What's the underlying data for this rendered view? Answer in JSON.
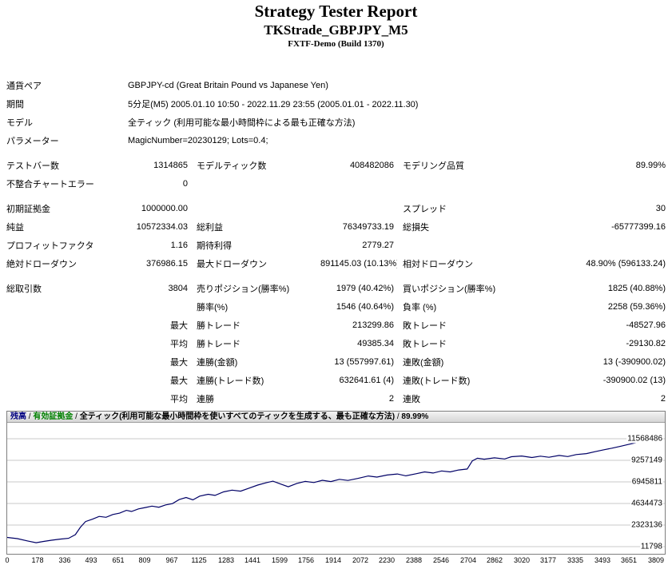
{
  "header": {
    "title": "Strategy Tester Report",
    "subtitle": "TKStrade_GBPJPY_M5",
    "build": "FXTF-Demo (Build 1370)"
  },
  "report": {
    "rows": [
      {
        "cells": [
          {
            "t": "通貨ペア"
          },
          {
            "t": "GBPJPY-cd (Great Britain Pound vs Japanese Yen)",
            "span": 5
          }
        ]
      },
      {
        "cells": [
          {
            "t": "期間"
          },
          {
            "t": "5分足(M5) 2005.01.10 10:50 - 2022.11.29 23:55 (2005.01.01 - 2022.11.30)",
            "span": 5
          }
        ]
      },
      {
        "cells": [
          {
            "t": "モデル"
          },
          {
            "t": "全ティック (利用可能な最小時間枠による最も正確な方法)",
            "span": 5
          }
        ]
      },
      {
        "cells": [
          {
            "t": "パラメーター"
          },
          {
            "t": "MagicNumber=20230129; Lots=0.4;",
            "span": 5
          }
        ]
      },
      {
        "spacer": true
      },
      {
        "cells": [
          {
            "t": "テストバー数"
          },
          {
            "t": "1314865",
            "align": "right"
          },
          {
            "t": "モデルティック数"
          },
          {
            "t": "408482086",
            "align": "right"
          },
          {
            "t": "モデリング品質"
          },
          {
            "t": "89.99%",
            "align": "right"
          }
        ]
      },
      {
        "cells": [
          {
            "t": "不整合チャートエラー"
          },
          {
            "t": "0",
            "align": "right"
          },
          {
            "t": ""
          },
          {
            "t": ""
          },
          {
            "t": ""
          },
          {
            "t": ""
          }
        ]
      },
      {
        "spacer": true
      },
      {
        "cells": [
          {
            "t": "初期証拠金"
          },
          {
            "t": "1000000.00",
            "align": "right"
          },
          {
            "t": ""
          },
          {
            "t": ""
          },
          {
            "t": "スプレッド"
          },
          {
            "t": "30",
            "align": "right"
          }
        ]
      },
      {
        "cells": [
          {
            "t": "純益"
          },
          {
            "t": "10572334.03",
            "align": "right"
          },
          {
            "t": "総利益"
          },
          {
            "t": "76349733.19",
            "align": "right"
          },
          {
            "t": "総損失"
          },
          {
            "t": "-65777399.16",
            "align": "right"
          }
        ]
      },
      {
        "cells": [
          {
            "t": "プロフィットファクタ"
          },
          {
            "t": "1.16",
            "align": "right"
          },
          {
            "t": "期待利得"
          },
          {
            "t": "2779.27",
            "align": "right"
          },
          {
            "t": ""
          },
          {
            "t": ""
          }
        ]
      },
      {
        "cells": [
          {
            "t": "絶対ドローダウン"
          },
          {
            "t": "376986.15",
            "align": "right"
          },
          {
            "t": "最大ドローダウン"
          },
          {
            "t": "891145.03 (10.13%)",
            "align": "right"
          },
          {
            "t": "相対ドローダウン"
          },
          {
            "t": "48.90% (596133.24)",
            "align": "right"
          }
        ]
      },
      {
        "spacer": true
      },
      {
        "cells": [
          {
            "t": "総取引数"
          },
          {
            "t": "3804",
            "align": "right"
          },
          {
            "t": "売りポジション(勝率%)"
          },
          {
            "t": "1979 (40.42%)",
            "align": "right"
          },
          {
            "t": "買いポジション(勝率%)"
          },
          {
            "t": "1825 (40.88%)",
            "align": "right"
          }
        ]
      },
      {
        "cells": [
          {
            "t": ""
          },
          {
            "t": ""
          },
          {
            "t": "勝率(%)"
          },
          {
            "t": "1546 (40.64%)",
            "align": "right"
          },
          {
            "t": "負率 (%)"
          },
          {
            "t": "2258 (59.36%)",
            "align": "right"
          }
        ]
      },
      {
        "cells": [
          {
            "t": ""
          },
          {
            "t": "最大",
            "align": "right"
          },
          {
            "t": "勝トレード"
          },
          {
            "t": "213299.86",
            "align": "right"
          },
          {
            "t": "敗トレード"
          },
          {
            "t": "-48527.96",
            "align": "right"
          }
        ]
      },
      {
        "cells": [
          {
            "t": ""
          },
          {
            "t": "平均",
            "align": "right"
          },
          {
            "t": "勝トレード"
          },
          {
            "t": "49385.34",
            "align": "right"
          },
          {
            "t": "敗トレード"
          },
          {
            "t": "-29130.82",
            "align": "right"
          }
        ]
      },
      {
        "cells": [
          {
            "t": ""
          },
          {
            "t": "最大",
            "align": "right"
          },
          {
            "t": "連勝(金額)"
          },
          {
            "t": "13 (557997.61)",
            "align": "right"
          },
          {
            "t": "連敗(金額)"
          },
          {
            "t": "13 (-390900.02)",
            "align": "right"
          }
        ]
      },
      {
        "cells": [
          {
            "t": ""
          },
          {
            "t": "最大",
            "align": "right"
          },
          {
            "t": "連勝(トレード数)"
          },
          {
            "t": "632641.61 (4)",
            "align": "right"
          },
          {
            "t": "連敗(トレード数)"
          },
          {
            "t": "-390900.02 (13)",
            "align": "right"
          }
        ]
      },
      {
        "cells": [
          {
            "t": ""
          },
          {
            "t": "平均",
            "align": "right"
          },
          {
            "t": "連勝"
          },
          {
            "t": "2",
            "align": "right"
          },
          {
            "t": "連敗"
          },
          {
            "t": "2",
            "align": "right"
          }
        ]
      }
    ]
  },
  "chart_data": {
    "type": "line",
    "legend": [
      {
        "label": "残高",
        "color": "#000080"
      },
      {
        "label": "有効証拠金",
        "color": "#008000"
      },
      {
        "label": "全ティック(利用可能な最小時間枠を使いすべてのティックを生成する、最も正確な方法)",
        "color": "#000000"
      },
      {
        "label": "89.99%",
        "color": "#000000"
      }
    ],
    "x_axis": {
      "max": 3860,
      "ticks": [
        0,
        178,
        336,
        493,
        651,
        809,
        967,
        1125,
        1283,
        1441,
        1599,
        1756,
        1914,
        2072,
        2230,
        2388,
        2546,
        2704,
        2862,
        3020,
        3177,
        3335,
        3493,
        3651,
        3809
      ]
    },
    "y_axis": {
      "top_value": 11568486,
      "bottom_value": 11798,
      "ticks": [
        11568486,
        9257149,
        6945811,
        4634473,
        2323136,
        11798
      ]
    },
    "series": [
      {
        "name": "残高",
        "color": "#000066",
        "points": [
          [
            0,
            1000000
          ],
          [
            60,
            870000
          ],
          [
            120,
            620000
          ],
          [
            170,
            430000
          ],
          [
            210,
            560000
          ],
          [
            260,
            700000
          ],
          [
            310,
            820000
          ],
          [
            360,
            900000
          ],
          [
            400,
            1300000
          ],
          [
            430,
            2100000
          ],
          [
            460,
            2700000
          ],
          [
            500,
            2950000
          ],
          [
            540,
            3250000
          ],
          [
            580,
            3150000
          ],
          [
            620,
            3450000
          ],
          [
            660,
            3600000
          ],
          [
            700,
            3900000
          ],
          [
            730,
            3780000
          ],
          [
            770,
            4050000
          ],
          [
            810,
            4200000
          ],
          [
            850,
            4350000
          ],
          [
            890,
            4230000
          ],
          [
            930,
            4480000
          ],
          [
            970,
            4620000
          ],
          [
            1010,
            5050000
          ],
          [
            1050,
            5280000
          ],
          [
            1090,
            5020000
          ],
          [
            1130,
            5420000
          ],
          [
            1180,
            5620000
          ],
          [
            1220,
            5500000
          ],
          [
            1270,
            5880000
          ],
          [
            1320,
            6060000
          ],
          [
            1370,
            5950000
          ],
          [
            1420,
            6280000
          ],
          [
            1470,
            6600000
          ],
          [
            1520,
            6850000
          ],
          [
            1560,
            7020000
          ],
          [
            1610,
            6680000
          ],
          [
            1650,
            6420000
          ],
          [
            1700,
            6780000
          ],
          [
            1750,
            7000000
          ],
          [
            1800,
            6880000
          ],
          [
            1850,
            7120000
          ],
          [
            1900,
            6980000
          ],
          [
            1950,
            7220000
          ],
          [
            2000,
            7100000
          ],
          [
            2060,
            7320000
          ],
          [
            2120,
            7580000
          ],
          [
            2170,
            7460000
          ],
          [
            2230,
            7680000
          ],
          [
            2290,
            7790000
          ],
          [
            2340,
            7600000
          ],
          [
            2400,
            7820000
          ],
          [
            2450,
            8020000
          ],
          [
            2500,
            7900000
          ],
          [
            2550,
            8120000
          ],
          [
            2600,
            8020000
          ],
          [
            2650,
            8220000
          ],
          [
            2700,
            8320000
          ],
          [
            2730,
            9200000
          ],
          [
            2760,
            9480000
          ],
          [
            2800,
            9380000
          ],
          [
            2860,
            9520000
          ],
          [
            2920,
            9400000
          ],
          [
            2960,
            9640000
          ],
          [
            3020,
            9720000
          ],
          [
            3080,
            9560000
          ],
          [
            3130,
            9700000
          ],
          [
            3180,
            9580000
          ],
          [
            3240,
            9780000
          ],
          [
            3290,
            9660000
          ],
          [
            3340,
            9870000
          ],
          [
            3400,
            9980000
          ],
          [
            3450,
            10180000
          ],
          [
            3500,
            10380000
          ],
          [
            3550,
            10560000
          ],
          [
            3600,
            10760000
          ],
          [
            3650,
            10980000
          ],
          [
            3700,
            11180000
          ],
          [
            3750,
            11380000
          ],
          [
            3780,
            11480000
          ],
          [
            3809,
            11568486
          ]
        ]
      }
    ]
  }
}
